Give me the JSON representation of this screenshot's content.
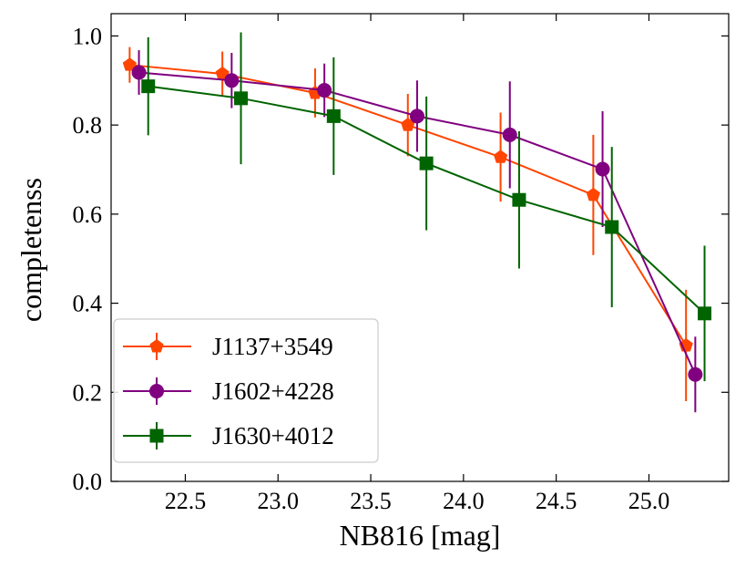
{
  "chart_data": {
    "type": "line",
    "xlabel": "NB816 [mag]",
    "ylabel": "completenss",
    "xlim": [
      22.1,
      25.43
    ],
    "ylim": [
      0.0,
      1.05
    ],
    "xticks": [
      22.5,
      23.0,
      23.5,
      24.0,
      24.5,
      25.0
    ],
    "xtick_labels": [
      "22.5",
      "23.0",
      "23.5",
      "24.0",
      "24.5",
      "25.0"
    ],
    "yticks": [
      0.0,
      0.2,
      0.4,
      0.6,
      0.8,
      1.0
    ],
    "ytick_labels": [
      "0.0",
      "0.2",
      "0.4",
      "0.6",
      "0.8",
      "1.0"
    ],
    "grid": false,
    "legend_position": "bottom-left",
    "series": [
      {
        "name": "J1137+3549",
        "color": "#ff4500",
        "marker": "pentagon",
        "x": [
          22.2,
          22.7,
          23.2,
          23.7,
          24.2,
          24.7,
          25.2
        ],
        "y": [
          0.935,
          0.915,
          0.872,
          0.8,
          0.728,
          0.643,
          0.305
        ],
        "yerr": [
          0.04,
          0.05,
          0.055,
          0.07,
          0.1,
          0.135,
          0.125
        ]
      },
      {
        "name": "J1602+4228",
        "color": "#800080",
        "marker": "circle",
        "x": [
          22.25,
          22.75,
          23.25,
          23.75,
          24.25,
          24.75,
          25.25
        ],
        "y": [
          0.918,
          0.9,
          0.878,
          0.82,
          0.778,
          0.701,
          0.24
        ],
        "yerr": [
          0.05,
          0.062,
          0.06,
          0.08,
          0.12,
          0.13,
          0.085
        ]
      },
      {
        "name": "J1630+4012",
        "color": "#006400",
        "marker": "square",
        "x": [
          22.3,
          22.8,
          23.3,
          23.8,
          24.3,
          24.8,
          25.3
        ],
        "y": [
          0.887,
          0.86,
          0.82,
          0.714,
          0.632,
          0.571,
          0.377
        ],
        "yerr": [
          0.11,
          0.148,
          0.132,
          0.15,
          0.154,
          0.18,
          0.152
        ]
      }
    ]
  }
}
